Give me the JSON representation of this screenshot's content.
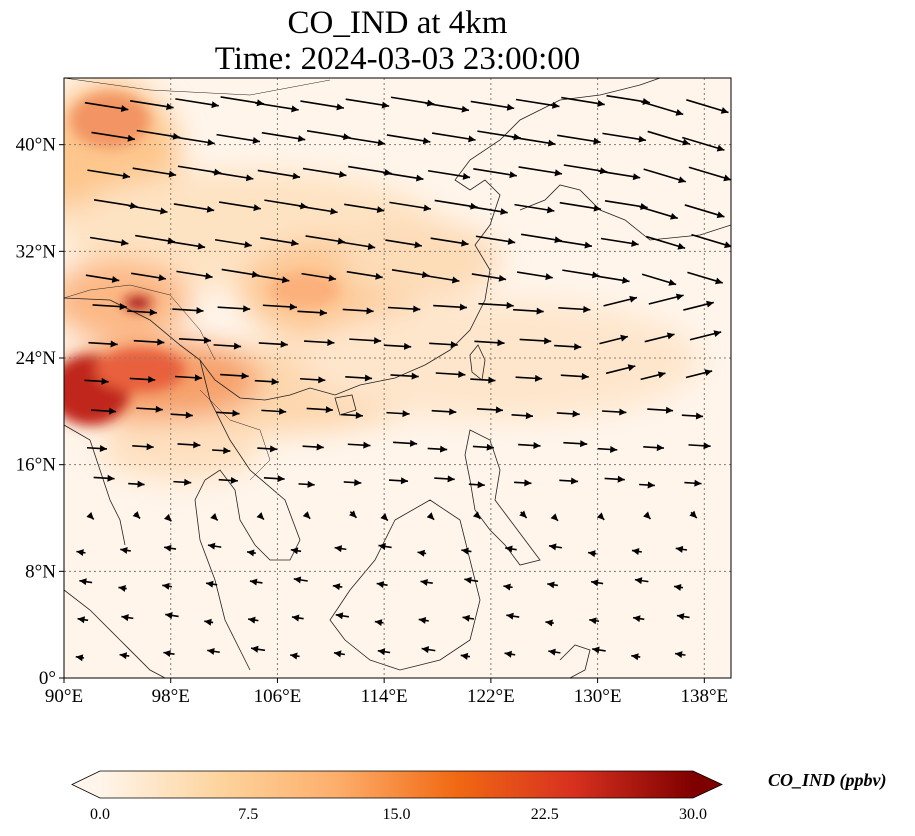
{
  "title": {
    "line1": "CO_IND at 4km",
    "line2": "Time: 2024-03-03 23:00:00"
  },
  "map": {
    "lon_range": [
      90,
      140
    ],
    "lat_range": [
      0,
      45
    ],
    "lon_ticks": [
      {
        "value": 90,
        "label": "90°E"
      },
      {
        "value": 98,
        "label": "98°E"
      },
      {
        "value": 106,
        "label": "106°E"
      },
      {
        "value": 114,
        "label": "114°E"
      },
      {
        "value": 122,
        "label": "122°E"
      },
      {
        "value": 130,
        "label": "130°E"
      },
      {
        "value": 138,
        "label": "138°E"
      }
    ],
    "lat_ticks": [
      {
        "value": 0,
        "label": "0°"
      },
      {
        "value": 8,
        "label": "8°N"
      },
      {
        "value": 16,
        "label": "16°N"
      },
      {
        "value": 24,
        "label": "24°N"
      },
      {
        "value": 32,
        "label": "32°N"
      },
      {
        "value": 40,
        "label": "40°N"
      }
    ],
    "gridlines": true
  },
  "colorbar": {
    "label": "CO_IND (ppbv)",
    "min": 0.0,
    "max": 30.0,
    "ticks": [
      {
        "value": 0.0,
        "label": "0.0"
      },
      {
        "value": 7.5,
        "label": "7.5"
      },
      {
        "value": 15.0,
        "label": "15.0"
      },
      {
        "value": 22.5,
        "label": "22.5"
      },
      {
        "value": 30.0,
        "label": "30.0"
      }
    ],
    "colors": [
      "#fff5eb",
      "#fdd49e",
      "#fdae6b",
      "#f16913",
      "#d7301f",
      "#7f0000"
    ],
    "extend": "both"
  },
  "colors": {
    "ocean_base": "#fff5eb",
    "coastline": "#222222",
    "vector": "#000000",
    "gridline": "#8a7a6a"
  }
}
